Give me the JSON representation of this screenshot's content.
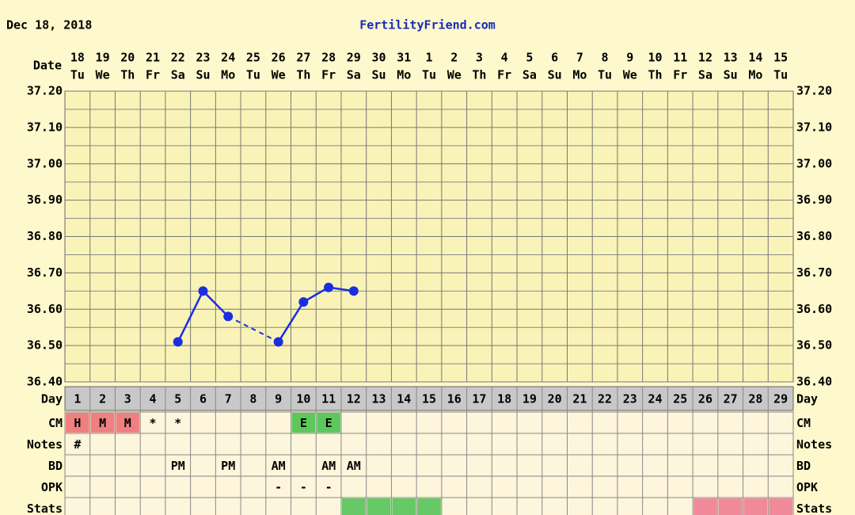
{
  "header": {
    "date": "Dec 18, 2018",
    "site": "FertilityFriend.com"
  },
  "chart_data": {
    "type": "line",
    "x_label": "Date",
    "x_row_label": "Day",
    "dates": [
      "18",
      "19",
      "20",
      "21",
      "22",
      "23",
      "24",
      "25",
      "26",
      "27",
      "28",
      "29",
      "30",
      "31",
      "1",
      "2",
      "3",
      "4",
      "5",
      "6",
      "7",
      "8",
      "9",
      "10",
      "11",
      "12",
      "13",
      "14",
      "15"
    ],
    "weekdays": [
      "Tu",
      "We",
      "Th",
      "Fr",
      "Sa",
      "Su",
      "Mo",
      "Tu",
      "We",
      "Th",
      "Fr",
      "Sa",
      "Su",
      "Mo",
      "Tu",
      "We",
      "Th",
      "Fr",
      "Sa",
      "Su",
      "Mo",
      "Tu",
      "We",
      "Th",
      "Fr",
      "Sa",
      "Su",
      "Mo",
      "Tu"
    ],
    "categories": [
      1,
      2,
      3,
      4,
      5,
      6,
      7,
      8,
      9,
      10,
      11,
      12,
      13,
      14,
      15,
      16,
      17,
      18,
      19,
      20,
      21,
      22,
      23,
      24,
      25,
      26,
      27,
      28,
      29
    ],
    "series": [
      {
        "color": "#1a2ee0",
        "values": [
          null,
          null,
          null,
          null,
          36.51,
          36.65,
          36.58,
          null,
          36.51,
          36.62,
          36.66,
          36.65,
          null,
          null,
          null,
          null,
          null,
          null,
          null,
          null,
          null,
          null,
          null,
          null,
          null,
          null,
          null,
          null,
          null
        ]
      }
    ],
    "ylim": [
      36.4,
      37.2
    ],
    "yticks": [
      {
        "value": 36.4,
        "label": "36.40"
      },
      {
        "value": 36.5,
        "label": "36.50"
      },
      {
        "value": 36.6,
        "label": "36.60"
      },
      {
        "value": 36.7,
        "label": "36.70"
      },
      {
        "value": 36.8,
        "label": "36.80"
      },
      {
        "value": 36.9,
        "label": "36.90"
      },
      {
        "value": 37.0,
        "label": "37.00"
      },
      {
        "value": 37.1,
        "label": "37.10"
      },
      {
        "value": 37.2,
        "label": "37.20"
      }
    ],
    "grid": true
  },
  "table": {
    "rows": [
      {
        "label": "CM",
        "cells": [
          "H",
          "M",
          "M",
          "*",
          "*",
          null,
          null,
          null,
          null,
          "E",
          "E",
          null,
          null,
          null,
          null,
          null,
          null,
          null,
          null,
          null,
          null,
          null,
          null,
          null,
          null,
          null,
          null,
          null,
          null
        ],
        "fills": [
          "#f08080",
          "#f08080",
          "#f08080",
          null,
          null,
          null,
          null,
          null,
          null,
          "#5cc85c",
          "#5cc85c",
          null,
          null,
          null,
          null,
          null,
          null,
          null,
          null,
          null,
          null,
          null,
          null,
          null,
          null,
          null,
          null,
          null,
          null
        ]
      },
      {
        "label": "Notes",
        "cells": [
          "#",
          null,
          null,
          null,
          null,
          null,
          null,
          null,
          null,
          null,
          null,
          null,
          null,
          null,
          null,
          null,
          null,
          null,
          null,
          null,
          null,
          null,
          null,
          null,
          null,
          null,
          null,
          null,
          null
        ]
      },
      {
        "label": "BD",
        "cells": [
          null,
          null,
          null,
          null,
          "PM",
          null,
          "PM",
          null,
          "AM",
          null,
          "AM",
          "AM",
          null,
          null,
          null,
          null,
          null,
          null,
          null,
          null,
          null,
          null,
          null,
          null,
          null,
          null,
          null,
          null,
          null
        ]
      },
      {
        "label": "OPK",
        "cells": [
          null,
          null,
          null,
          null,
          null,
          null,
          null,
          null,
          "-",
          "-",
          "-",
          null,
          null,
          null,
          null,
          null,
          null,
          null,
          null,
          null,
          null,
          null,
          null,
          null,
          null,
          null,
          null,
          null,
          null
        ]
      },
      {
        "label": "Stats",
        "cells": [
          null,
          null,
          null,
          null,
          null,
          null,
          null,
          null,
          null,
          null,
          null,
          null,
          null,
          null,
          null,
          null,
          null,
          null,
          null,
          null,
          null,
          null,
          null,
          null,
          null,
          null,
          null,
          null,
          null
        ],
        "fills": [
          null,
          null,
          null,
          null,
          null,
          null,
          null,
          null,
          null,
          null,
          null,
          "#66c866",
          "#66c866",
          "#66c866",
          "#66c866",
          null,
          null,
          null,
          null,
          null,
          null,
          null,
          null,
          null,
          null,
          "#f08a9a",
          "#f08a9a",
          "#f08a9a",
          "#f08a9a"
        ]
      }
    ]
  }
}
